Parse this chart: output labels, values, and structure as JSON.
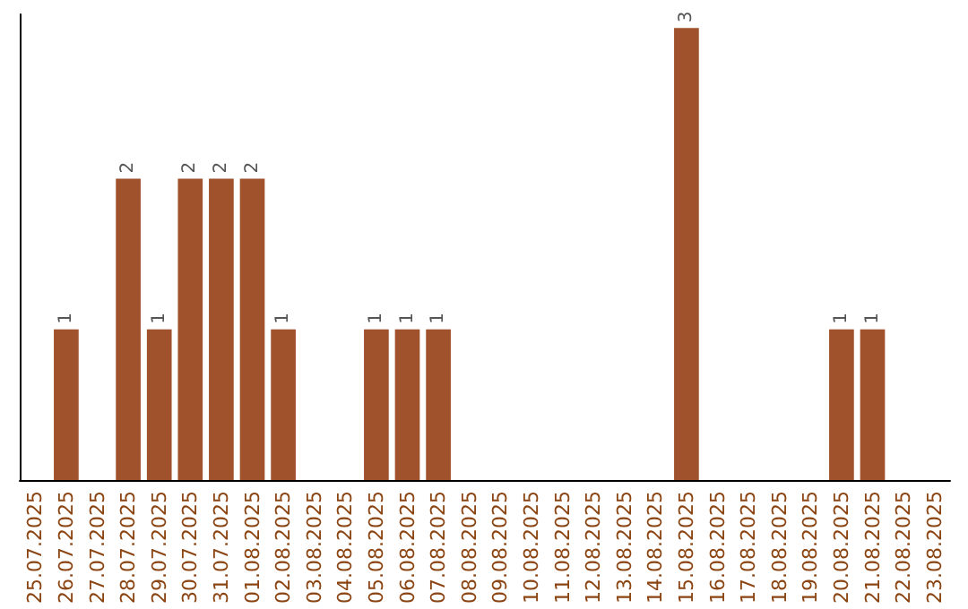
{
  "chart_data": {
    "type": "bar",
    "categories": [
      "25.07.2025",
      "26.07.2025",
      "27.07.2025",
      "28.07.2025",
      "29.07.2025",
      "30.07.2025",
      "31.07.2025",
      "01.08.2025",
      "02.08.2025",
      "03.08.2025",
      "04.08.2025",
      "05.08.2025",
      "06.08.2025",
      "07.08.2025",
      "08.08.2025",
      "09.08.2025",
      "10.08.2025",
      "11.08.2025",
      "12.08.2025",
      "13.08.2025",
      "14.08.2025",
      "15.08.2025",
      "16.08.2025",
      "17.08.2025",
      "18.08.2025",
      "19.08.2025",
      "20.08.2025",
      "21.08.2025",
      "22.08.2025",
      "23.08.2025"
    ],
    "values": [
      0,
      1,
      0,
      2,
      1,
      2,
      2,
      2,
      1,
      0,
      0,
      1,
      1,
      1,
      0,
      0,
      0,
      0,
      0,
      0,
      0,
      3,
      0,
      0,
      0,
      0,
      1,
      1,
      0,
      0
    ],
    "value_labels": [
      null,
      "1",
      null,
      "2",
      "1",
      "2",
      "2",
      "2",
      "1",
      null,
      null,
      "1",
      "1",
      "1",
      null,
      null,
      null,
      null,
      null,
      null,
      null,
      "3",
      null,
      null,
      null,
      null,
      "1",
      "1",
      null,
      null
    ],
    "color": "#a0522d"
  }
}
